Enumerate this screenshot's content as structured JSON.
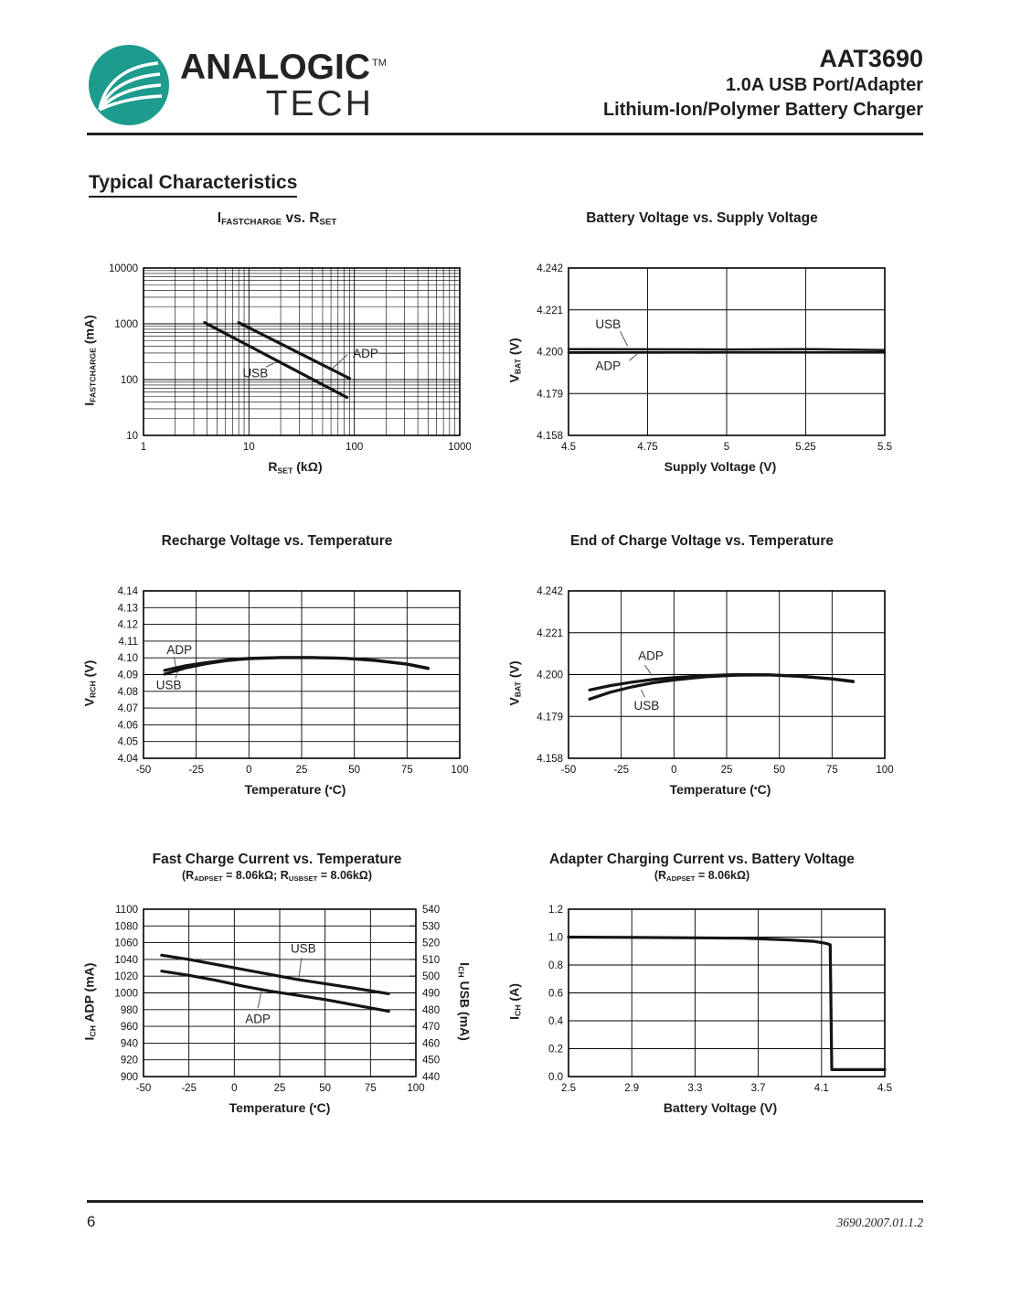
{
  "colors": {
    "logo_teal": "#1d9b8c"
  },
  "header": {
    "brand": {
      "name_top": "ANALOGIC",
      "tm": "TM",
      "name_bottom": "TECH"
    },
    "part_number": "AAT3690",
    "subtitle_line1": "1.0A USB Port/Adapter",
    "subtitle_line2": "Lithium-Ion/Polymer Battery Charger"
  },
  "section_title": "Typical Characteristics",
  "footer": {
    "page_number": "6",
    "revision": "3690.2007.01.1.2"
  },
  "chart_data": [
    {
      "type": "line",
      "title_parts": [
        [
          "I",
          ""
        ],
        [
          "FASTCHARGE",
          "sub"
        ],
        [
          " vs. R",
          ""
        ],
        [
          "SET",
          "sub"
        ]
      ],
      "xlabel_parts": [
        [
          "R",
          ""
        ],
        [
          "SET",
          "sub"
        ],
        [
          " (kΩ)",
          ""
        ]
      ],
      "ylabel_parts": [
        [
          "I",
          ""
        ],
        [
          "FASTCHARGE",
          "sub"
        ],
        [
          " (mA)",
          ""
        ]
      ],
      "xscale": "log",
      "yscale": "log",
      "xlim": [
        1,
        1000
      ],
      "ylim": [
        10,
        10000
      ],
      "minor_grid": true,
      "xticks": {
        "values": [
          1,
          10,
          100,
          1000
        ],
        "labels": [
          "1",
          "10",
          "100",
          "1000"
        ]
      },
      "yticks": {
        "values": [
          10,
          100,
          1000,
          10000
        ],
        "labels": [
          "10",
          "100",
          "1000",
          "10000"
        ]
      },
      "series": [
        {
          "name": "ADP",
          "points": [
            [
              8,
              1050
            ],
            [
              90,
              105
            ]
          ]
        },
        {
          "name": "USB",
          "points": [
            [
              3.8,
              1050
            ],
            [
              85,
              48
            ]
          ]
        }
      ],
      "annotations": [
        {
          "text": "USB",
          "x": 11.5,
          "y": 130,
          "anchor": "middle",
          "leader": [
            14.5,
            168,
            19,
            215
          ]
        },
        {
          "text": "ADP",
          "x": 97,
          "y": 295,
          "anchor": "start",
          "leader": [
            86,
            280,
            60,
            150
          ],
          "tail": [
            170,
            295,
            300,
            295
          ]
        }
      ]
    },
    {
      "type": "line",
      "title_parts": [
        [
          "Battery Voltage vs. Supply Voltage",
          ""
        ]
      ],
      "xlabel_parts": [
        [
          "Supply Voltage (V)",
          ""
        ]
      ],
      "ylabel_parts": [
        [
          "V",
          ""
        ],
        [
          "BAT",
          "sub"
        ],
        [
          " (V)",
          ""
        ]
      ],
      "xlim": [
        4.5,
        5.5
      ],
      "ylim": [
        4.158,
        4.242
      ],
      "xticks": {
        "values": [
          4.5,
          4.75,
          5,
          5.25,
          5.5
        ],
        "labels": [
          "4.5",
          "4.75",
          "5",
          "5.25",
          "5.5"
        ]
      },
      "yticks": {
        "values": [
          4.158,
          4.179,
          4.2,
          4.221,
          4.242
        ],
        "labels": [
          "4.158",
          "4.179",
          "4.200",
          "4.221",
          "4.242"
        ]
      },
      "series": [
        {
          "name": "USB",
          "width": 2.5,
          "points": [
            [
              4.5,
              4.2013
            ],
            [
              4.75,
              4.2012
            ],
            [
              5.0,
              4.2011
            ],
            [
              5.25,
              4.2013
            ],
            [
              5.5,
              4.2008
            ]
          ]
        },
        {
          "name": "ADP",
          "width": 2.5,
          "points": [
            [
              4.5,
              4.1995
            ],
            [
              5.0,
              4.1996
            ],
            [
              5.5,
              4.1996
            ]
          ]
        }
      ],
      "annotations": [
        {
          "text": "USB",
          "x": 4.625,
          "y": 4.2138,
          "anchor": "middle",
          "leader": [
            4.663,
            4.2102,
            4.687,
            4.2028
          ]
        },
        {
          "text": "ADP",
          "x": 4.625,
          "y": 4.1928,
          "anchor": "middle",
          "leader": [
            4.692,
            4.1955,
            4.717,
            4.1988
          ]
        }
      ]
    },
    {
      "type": "line",
      "title_parts": [
        [
          "Recharge Voltage vs. Temperature",
          ""
        ]
      ],
      "xlabel_parts": [
        [
          "Temperature (",
          ""
        ],
        [
          "•",
          "deg"
        ],
        [
          "C)",
          ""
        ]
      ],
      "ylabel_parts": [
        [
          "V",
          ""
        ],
        [
          "RCH",
          "sub"
        ],
        [
          " (V)",
          ""
        ]
      ],
      "xlim": [
        -50,
        100
      ],
      "ylim": [
        4.04,
        4.14
      ],
      "xticks": {
        "values": [
          -50,
          -25,
          0,
          25,
          50,
          75,
          100
        ],
        "labels": [
          "-50",
          "-25",
          "0",
          "25",
          "50",
          "75",
          "100"
        ]
      },
      "yticks": {
        "values": [
          4.04,
          4.05,
          4.06,
          4.07,
          4.08,
          4.09,
          4.1,
          4.11,
          4.12,
          4.13,
          4.14
        ],
        "labels": [
          "4.04",
          "4.05",
          "4.06",
          "4.07",
          "4.08",
          "4.09",
          "4.10",
          "4.11",
          "4.12",
          "4.13",
          "4.14"
        ]
      },
      "series": [
        {
          "name": "ADP",
          "points": [
            [
              -40,
              4.0925
            ],
            [
              -30,
              4.0953
            ],
            [
              -20,
              4.0972
            ],
            [
              -10,
              4.0988
            ],
            [
              0,
              4.0997
            ],
            [
              15,
              4.1002
            ],
            [
              30,
              4.1002
            ],
            [
              45,
              4.0998
            ],
            [
              60,
              4.0985
            ],
            [
              75,
              4.0963
            ],
            [
              85,
              4.0938
            ]
          ]
        },
        {
          "name": "USB",
          "points": [
            [
              -40,
              4.0903
            ],
            [
              -30,
              4.094
            ],
            [
              -20,
              4.0965
            ],
            [
              -10,
              4.0984
            ],
            [
              0,
              4.0995
            ],
            [
              15,
              4.1001
            ],
            [
              30,
              4.1001
            ],
            [
              45,
              4.0997
            ],
            [
              60,
              4.0984
            ],
            [
              75,
              4.0962
            ],
            [
              85,
              4.0936
            ]
          ]
        }
      ],
      "annotations": [
        {
          "text": "ADP",
          "x": -33,
          "y": 4.1047,
          "anchor": "middle",
          "leader": [
            -35.5,
            4.1005,
            -34.6,
            4.0942
          ]
        },
        {
          "text": "USB",
          "x": -38,
          "y": 4.0838,
          "anchor": "middle",
          "leader": [
            -34.8,
            4.0878,
            -33.8,
            4.0918
          ]
        }
      ]
    },
    {
      "type": "line",
      "title_parts": [
        [
          "End of Charge Voltage vs. Temperature",
          ""
        ]
      ],
      "xlabel_parts": [
        [
          "Temperature (",
          ""
        ],
        [
          "•",
          "deg"
        ],
        [
          "C)",
          ""
        ]
      ],
      "ylabel_parts": [
        [
          "V",
          ""
        ],
        [
          "BAT",
          "sub"
        ],
        [
          " (V)",
          ""
        ]
      ],
      "xlim": [
        -50,
        100
      ],
      "ylim": [
        4.158,
        4.242
      ],
      "xticks": {
        "values": [
          -50,
          -25,
          0,
          25,
          50,
          75,
          100
        ],
        "labels": [
          "-50",
          "-25",
          "0",
          "25",
          "50",
          "75",
          "100"
        ]
      },
      "yticks": {
        "values": [
          4.158,
          4.179,
          4.2,
          4.221,
          4.242
        ],
        "labels": [
          "4.158",
          "4.179",
          "4.200",
          "4.221",
          "4.242"
        ]
      },
      "series": [
        {
          "name": "ADP",
          "points": [
            [
              -40,
              4.1923
            ],
            [
              -30,
              4.1945
            ],
            [
              -20,
              4.1962
            ],
            [
              -10,
              4.1975
            ],
            [
              0,
              4.1985
            ],
            [
              15,
              4.1995
            ],
            [
              30,
              4.2
            ],
            [
              45,
              4.1999
            ],
            [
              60,
              4.1992
            ],
            [
              75,
              4.1979
            ],
            [
              85,
              4.1966
            ]
          ]
        },
        {
          "name": "USB",
          "points": [
            [
              -40,
              4.1877
            ],
            [
              -30,
              4.1912
            ],
            [
              -20,
              4.1938
            ],
            [
              -10,
              4.1958
            ],
            [
              0,
              4.1973
            ],
            [
              15,
              4.1989
            ],
            [
              30,
              4.1997
            ],
            [
              45,
              4.1998
            ],
            [
              60,
              4.1991
            ],
            [
              75,
              4.1978
            ],
            [
              85,
              4.1964
            ]
          ]
        }
      ],
      "annotations": [
        {
          "text": "ADP",
          "x": -11,
          "y": 4.2095,
          "anchor": "middle",
          "leader": [
            -13.8,
            4.2048,
            -10.4,
            4.1994
          ]
        },
        {
          "text": "USB",
          "x": -13,
          "y": 4.1845,
          "anchor": "middle",
          "leader": [
            -15.6,
            4.1924,
            -13.8,
            4.1886
          ]
        }
      ]
    },
    {
      "type": "line",
      "title_parts": [
        [
          "Fast Charge Current vs. Temperature",
          ""
        ]
      ],
      "subtitle_parts": [
        [
          "(R",
          ""
        ],
        [
          "ADPSET",
          "sub"
        ],
        [
          " = 8.06kΩ; R",
          ""
        ],
        [
          "USBSET",
          "sub"
        ],
        [
          " = 8.06kΩ)",
          ""
        ]
      ],
      "xlabel_parts": [
        [
          "Temperature (",
          ""
        ],
        [
          "•",
          "deg"
        ],
        [
          "C)",
          ""
        ]
      ],
      "ylabel_parts": [
        [
          "I",
          ""
        ],
        [
          "CH",
          "sub"
        ],
        [
          " ADP (mA)",
          ""
        ]
      ],
      "ylabel2_parts": [
        [
          "I",
          ""
        ],
        [
          "CH",
          "sub"
        ],
        [
          " USB (mA)",
          ""
        ]
      ],
      "xlim": [
        -50,
        100
      ],
      "ylim": [
        900,
        1100
      ],
      "y2lim": [
        440,
        540
      ],
      "xticks": {
        "values": [
          -50,
          -25,
          0,
          25,
          50,
          75,
          100
        ],
        "labels": [
          "-50",
          "-25",
          "0",
          "25",
          "50",
          "75",
          "100"
        ]
      },
      "yticks": {
        "values": [
          900,
          920,
          940,
          960,
          980,
          1000,
          1020,
          1040,
          1060,
          1080,
          1100
        ],
        "labels": [
          "900",
          "920",
          "940",
          "960",
          "980",
          "1000",
          "1020",
          "1040",
          "1060",
          "1080",
          "1100"
        ]
      },
      "y2ticks": {
        "values": [
          440,
          450,
          460,
          470,
          480,
          490,
          500,
          510,
          520,
          530,
          540
        ],
        "labels": [
          "440",
          "450",
          "460",
          "470",
          "480",
          "490",
          "500",
          "510",
          "520",
          "530",
          "540"
        ]
      },
      "series": [
        {
          "name": "USB",
          "points": [
            [
              -40,
              1045
            ],
            [
              -25,
              1040
            ],
            [
              -10,
              1034
            ],
            [
              5,
              1028
            ],
            [
              20,
              1022
            ],
            [
              35,
              1016
            ],
            [
              50,
              1011
            ],
            [
              65,
              1006
            ],
            [
              85,
              999
            ]
          ]
        },
        {
          "name": "ADP",
          "points": [
            [
              -40,
              1026
            ],
            [
              -25,
              1021
            ],
            [
              -10,
              1015
            ],
            [
              5,
              1008
            ],
            [
              20,
              1002
            ],
            [
              35,
              997
            ],
            [
              50,
              992
            ],
            [
              65,
              986
            ],
            [
              85,
              978
            ]
          ]
        }
      ],
      "annotations": [
        {
          "text": "USB",
          "x": 38,
          "y": 1053,
          "anchor": "middle",
          "leader": [
            37,
            1042,
            35.5,
            1017
          ]
        },
        {
          "text": "ADP",
          "x": 13,
          "y": 969,
          "anchor": "middle",
          "leader": [
            15,
            1003,
            13,
            982
          ]
        }
      ]
    },
    {
      "type": "line",
      "title_parts": [
        [
          "Adapter Charging Current vs. Battery Voltage",
          ""
        ]
      ],
      "subtitle_parts": [
        [
          "(R",
          ""
        ],
        [
          "ADPSET",
          "sub"
        ],
        [
          " = 8.06kΩ)",
          ""
        ]
      ],
      "xlabel_parts": [
        [
          "Battery Voltage (V)",
          ""
        ]
      ],
      "ylabel_parts": [
        [
          "I",
          ""
        ],
        [
          "CH",
          "sub"
        ],
        [
          " (A)",
          ""
        ]
      ],
      "xlim": [
        2.5,
        4.5
      ],
      "ylim": [
        0,
        1.2
      ],
      "xticks": {
        "values": [
          2.5,
          2.9,
          3.3,
          3.7,
          4.1,
          4.5
        ],
        "labels": [
          "2.5",
          "2.9",
          "3.3",
          "3.7",
          "4.1",
          "4.5"
        ]
      },
      "yticks": {
        "values": [
          0,
          0.2,
          0.4,
          0.6,
          0.8,
          1.0,
          1.2
        ],
        "labels": [
          "0.0",
          "0.2",
          "0.4",
          "0.6",
          "0.8",
          "1.0",
          "1.2"
        ]
      },
      "series": [
        {
          "name": "ADP",
          "points": [
            [
              2.5,
              1.0
            ],
            [
              2.9,
              0.998
            ],
            [
              3.3,
              0.995
            ],
            [
              3.6,
              0.992
            ],
            [
              3.9,
              0.98
            ],
            [
              4.05,
              0.97
            ],
            [
              4.13,
              0.955
            ],
            [
              4.155,
              0.945
            ],
            [
              4.165,
              0.05
            ],
            [
              4.5,
              0.05
            ]
          ]
        }
      ],
      "annotations": []
    }
  ]
}
